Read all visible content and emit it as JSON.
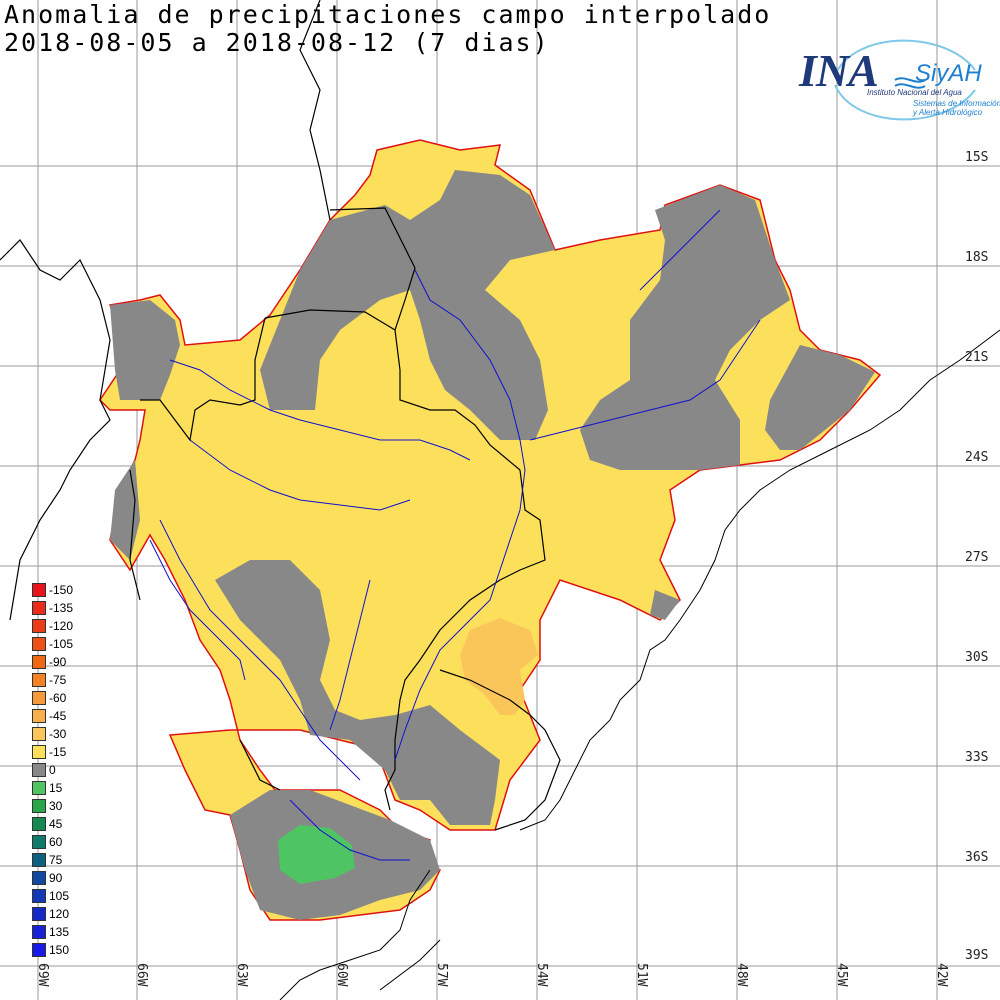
{
  "title": {
    "line1": "Anomalia de precipitaciones campo interpolado",
    "line2": "2018-08-05 a 2018-08-12 (7 dias)"
  },
  "logo": {
    "ina": "INA",
    "siyah": "SiyAH",
    "institute": "Instituto Nacional del Agua",
    "system_line1": "Sistemas de Información",
    "system_line2": "y Alerta Hidrológico"
  },
  "latitudes": [
    "15S",
    "18S",
    "21S",
    "24S",
    "27S",
    "30S",
    "33S",
    "36S",
    "39S"
  ],
  "longitudes": [
    "69W",
    "66W",
    "63W",
    "60W",
    "57W",
    "54W",
    "51W",
    "48W",
    "45W",
    "42W"
  ],
  "legend": [
    {
      "label": "-150",
      "color": "#e8141c"
    },
    {
      "label": "-135",
      "color": "#ea2a1a"
    },
    {
      "label": "-120",
      "color": "#ec3b18"
    },
    {
      "label": "-105",
      "color": "#ee5016"
    },
    {
      "label": "-90",
      "color": "#f06814"
    },
    {
      "label": "-75",
      "color": "#f28224"
    },
    {
      "label": "-60",
      "color": "#f59a38"
    },
    {
      "label": "-45",
      "color": "#f8b04a"
    },
    {
      "label": "-30",
      "color": "#fac65a"
    },
    {
      "label": "-15",
      "color": "#fce05c"
    },
    {
      "label": "0",
      "color": "#888888"
    },
    {
      "label": "15",
      "color": "#4fc463"
    },
    {
      "label": "30",
      "color": "#2aa54a"
    },
    {
      "label": "45",
      "color": "#148a52"
    },
    {
      "label": "60",
      "color": "#0e7b6a"
    },
    {
      "label": "75",
      "color": "#0f5f80"
    },
    {
      "label": "90",
      "color": "#1148a0"
    },
    {
      "label": "105",
      "color": "#1238b8"
    },
    {
      "label": "120",
      "color": "#142ac8"
    },
    {
      "label": "135",
      "color": "#1820d8"
    },
    {
      "label": "150",
      "color": "#1a1ae8"
    }
  ],
  "colors": {
    "basin_outline": "#e01010",
    "negative_fill": "#fce05c",
    "neutral_fill": "#888888",
    "moderate_negative_fill": "#fac65a",
    "positive_fill": "#4fc463",
    "rivers": "#1010d0",
    "borders": "#000000",
    "grid": "#9a9a9a"
  }
}
